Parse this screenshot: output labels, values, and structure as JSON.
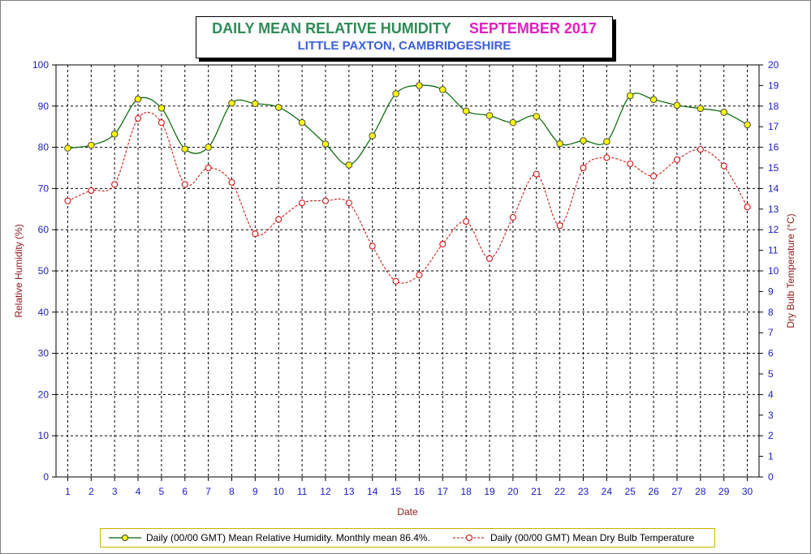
{
  "chart_data": {
    "type": "line",
    "title": "DAILY MEAN RELATIVE HUMIDITY",
    "title_date": "SEPTEMBER 2017",
    "subtitle": "LITTLE PAXTON, CAMBRIDGESHIRE",
    "xlabel": "Date",
    "ylabel_left": "Relative Humidity (%)",
    "ylabel_right": "Dry Bulb Temperature (°C)",
    "x": [
      1,
      2,
      3,
      4,
      5,
      6,
      7,
      8,
      9,
      10,
      11,
      12,
      13,
      14,
      15,
      16,
      17,
      18,
      19,
      20,
      21,
      22,
      23,
      24,
      25,
      26,
      27,
      28,
      29,
      30
    ],
    "ylim_left": [
      0,
      100
    ],
    "yticks_left": [
      0,
      10,
      20,
      30,
      40,
      50,
      60,
      70,
      80,
      90,
      100
    ],
    "ylim_right": [
      0,
      20
    ],
    "yticks_right": [
      0,
      1,
      2,
      3,
      4,
      5,
      6,
      7,
      8,
      9,
      10,
      11,
      12,
      13,
      14,
      15,
      16,
      17,
      18,
      19,
      20
    ],
    "grid": true,
    "legend_position": "bottom",
    "series": [
      {
        "name": "Daily (00/00 GMT) Mean Relative Humidity. Monthly mean 86.4%.",
        "axis": "left",
        "color": "#006400",
        "marker_color": "#ffff00",
        "values": [
          79.8,
          80.5,
          83.2,
          91.7,
          89.5,
          79.6,
          80.0,
          90.7,
          90.6,
          89.7,
          86.0,
          80.8,
          75.7,
          82.8,
          93.0,
          95.0,
          94.0,
          88.8,
          87.7,
          86.0,
          87.5,
          80.9,
          81.6,
          81.4,
          92.5,
          91.6,
          90.2,
          89.4,
          88.5,
          85.5
        ]
      },
      {
        "name": "Daily (00/00 GMT) Mean Dry Bulb Temperature",
        "axis": "right",
        "color": "#cc0000",
        "values": [
          13.4,
          13.9,
          14.2,
          17.4,
          17.2,
          14.2,
          15.0,
          14.3,
          11.8,
          12.5,
          13.3,
          13.4,
          13.3,
          11.2,
          9.5,
          9.8,
          11.3,
          12.4,
          10.6,
          12.6,
          14.7,
          12.2,
          15.0,
          15.5,
          15.2,
          14.6,
          15.4,
          15.9,
          15.1,
          13.1
        ]
      }
    ]
  }
}
